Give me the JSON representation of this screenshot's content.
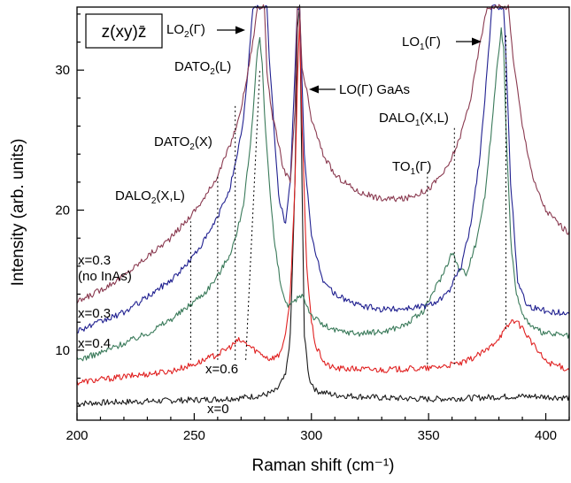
{
  "chart_data": {
    "type": "line",
    "title": "",
    "geometry_label": "z(xy)z̄",
    "xlabel": "Raman shift (cm⁻¹)",
    "ylabel": "Intensity (arb. units)",
    "xlim": [
      200,
      410
    ],
    "ylim": [
      5,
      34.5
    ],
    "x_ticks": [
      200,
      250,
      300,
      350,
      400
    ],
    "y_ticks": [
      10,
      20,
      30
    ],
    "grid": false,
    "series": [
      {
        "name": "x=0",
        "label_lines": [
          "x=0"
        ],
        "color": "#1a1a1a",
        "points": [
          [
            200,
            6.2
          ],
          [
            220,
            6.3
          ],
          [
            240,
            6.4
          ],
          [
            260,
            6.5
          ],
          [
            270,
            6.6
          ],
          [
            280,
            6.8
          ],
          [
            285,
            7.1
          ],
          [
            289,
            8.2
          ],
          [
            291,
            11
          ],
          [
            293,
            22
          ],
          [
            294,
            33
          ],
          [
            295,
            34.5
          ],
          [
            296,
            22
          ],
          [
            297,
            11
          ],
          [
            299,
            8
          ],
          [
            302,
            7.1
          ],
          [
            310,
            6.8
          ],
          [
            330,
            6.6
          ],
          [
            350,
            6.5
          ],
          [
            370,
            6.6
          ],
          [
            385,
            6.7
          ],
          [
            395,
            6.7
          ],
          [
            410,
            6.6
          ]
        ]
      },
      {
        "name": "x=0.6",
        "label_lines": [
          "x=0.6"
        ],
        "color": "#e02020",
        "points": [
          [
            200,
            7.7
          ],
          [
            220,
            8.1
          ],
          [
            240,
            8.5
          ],
          [
            250,
            9.0
          ],
          [
            260,
            9.7
          ],
          [
            265,
            10.2
          ],
          [
            269,
            10.7
          ],
          [
            272,
            10.5
          ],
          [
            276,
            10.0
          ],
          [
            282,
            9.4
          ],
          [
            286,
            9.6
          ],
          [
            289,
            11
          ],
          [
            291,
            14
          ],
          [
            293,
            22
          ],
          [
            294,
            29
          ],
          [
            295,
            33.5
          ],
          [
            296,
            26
          ],
          [
            298,
            16
          ],
          [
            300,
            12
          ],
          [
            302,
            10.2
          ],
          [
            306,
            9.0
          ],
          [
            310,
            8.7
          ],
          [
            330,
            8.6
          ],
          [
            350,
            8.7
          ],
          [
            365,
            9.1
          ],
          [
            375,
            10.0
          ],
          [
            382,
            11.3
          ],
          [
            386,
            12.2
          ],
          [
            390,
            11.6
          ],
          [
            395,
            10.3
          ],
          [
            400,
            9.2
          ],
          [
            410,
            8.6
          ]
        ]
      },
      {
        "name": "x=0.4",
        "label_lines": [
          "x=0.4"
        ],
        "color": "#3a7a5a",
        "points": [
          [
            200,
            9.3
          ],
          [
            210,
            9.8
          ],
          [
            220,
            10.5
          ],
          [
            230,
            11.2
          ],
          [
            240,
            12.2
          ],
          [
            245,
            12.8
          ],
          [
            250,
            13.5
          ],
          [
            255,
            14.2
          ],
          [
            260,
            15.3
          ],
          [
            265,
            16.8
          ],
          [
            268,
            18.2
          ],
          [
            271,
            20.5
          ],
          [
            274,
            24.5
          ],
          [
            276,
            29
          ],
          [
            277,
            31.5
          ],
          [
            278,
            32.2
          ],
          [
            279,
            30.5
          ],
          [
            280,
            27
          ],
          [
            282,
            22
          ],
          [
            284,
            18
          ],
          [
            287,
            14.5
          ],
          [
            290,
            13
          ],
          [
            293,
            13.5
          ],
          [
            296,
            14
          ],
          [
            300,
            12.5
          ],
          [
            305,
            11.8
          ],
          [
            310,
            11.4
          ],
          [
            320,
            11.2
          ],
          [
            330,
            11.3
          ],
          [
            340,
            11.8
          ],
          [
            348,
            12.8
          ],
          [
            352,
            14.2
          ],
          [
            356,
            15.4
          ],
          [
            360,
            17.0
          ],
          [
            363,
            15.8
          ],
          [
            366,
            15.5
          ],
          [
            370,
            17.5
          ],
          [
            374,
            21
          ],
          [
            377,
            26
          ],
          [
            379,
            30
          ],
          [
            381,
            33
          ],
          [
            382,
            31.5
          ],
          [
            383,
            26
          ],
          [
            385,
            18
          ],
          [
            387,
            14.5
          ],
          [
            390,
            12.5
          ],
          [
            395,
            11.5
          ],
          [
            400,
            11.2
          ],
          [
            410,
            11.0
          ]
        ]
      },
      {
        "name": "x=0.3",
        "label_lines": [
          "x=0.3"
        ],
        "color": "#202090",
        "points": [
          [
            200,
            11.4
          ],
          [
            210,
            12.0
          ],
          [
            220,
            12.7
          ],
          [
            230,
            13.8
          ],
          [
            240,
            15.0
          ],
          [
            245,
            15.8
          ],
          [
            250,
            16.8
          ],
          [
            255,
            18.0
          ],
          [
            260,
            19.5
          ],
          [
            265,
            21.5
          ],
          [
            268,
            23.5
          ],
          [
            271,
            26.5
          ],
          [
            273,
            30
          ],
          [
            275,
            34.5
          ],
          [
            281,
            34.5
          ],
          [
            282,
            31
          ],
          [
            284,
            26
          ],
          [
            286,
            21
          ],
          [
            289,
            19
          ],
          [
            291,
            22
          ],
          [
            293,
            30
          ],
          [
            294,
            34.5
          ],
          [
            295,
            34.5
          ],
          [
            297,
            24
          ],
          [
            300,
            18
          ],
          [
            305,
            15
          ],
          [
            310,
            14.0
          ],
          [
            320,
            13.2
          ],
          [
            330,
            12.9
          ],
          [
            340,
            13.0
          ],
          [
            350,
            13.2
          ],
          [
            358,
            14.0
          ],
          [
            364,
            16.0
          ],
          [
            368,
            19.0
          ],
          [
            372,
            24
          ],
          [
            375,
            30
          ],
          [
            377,
            34.5
          ],
          [
            382,
            34.5
          ],
          [
            383,
            31
          ],
          [
            385,
            22
          ],
          [
            388,
            15
          ],
          [
            392,
            13.2
          ],
          [
            400,
            12.8
          ],
          [
            410,
            12.6
          ]
        ]
      },
      {
        "name": "x=0.3 (no InAs)",
        "label_lines": [
          "x=0.3",
          "(no InAs)"
        ],
        "color": "#8a3a50",
        "points": [
          [
            200,
            13.4
          ],
          [
            210,
            14.3
          ],
          [
            220,
            15.3
          ],
          [
            230,
            16.7
          ],
          [
            240,
            18.0
          ],
          [
            248,
            19.5
          ],
          [
            255,
            21.0
          ],
          [
            260,
            22.5
          ],
          [
            265,
            24.5
          ],
          [
            269,
            26.5
          ],
          [
            272,
            29
          ],
          [
            275,
            32
          ],
          [
            277,
            34.5
          ],
          [
            280,
            34.5
          ],
          [
            281,
            30
          ],
          [
            283,
            27
          ],
          [
            285,
            25.5
          ],
          [
            288,
            23
          ],
          [
            291,
            22
          ],
          [
            293,
            27
          ],
          [
            294,
            34.5
          ],
          [
            295,
            34.5
          ],
          [
            296,
            30
          ],
          [
            298,
            28.5
          ],
          [
            300,
            26.5
          ],
          [
            305,
            24
          ],
          [
            310,
            22.5
          ],
          [
            320,
            21.3
          ],
          [
            330,
            20.8
          ],
          [
            340,
            20.8
          ],
          [
            350,
            21.5
          ],
          [
            358,
            23
          ],
          [
            363,
            25
          ],
          [
            368,
            28
          ],
          [
            372,
            32
          ],
          [
            375,
            34.5
          ],
          [
            384,
            34.5
          ],
          [
            386,
            31
          ],
          [
            390,
            26
          ],
          [
            395,
            22
          ],
          [
            400,
            20
          ],
          [
            410,
            18.3
          ]
        ]
      }
    ],
    "annotations": [
      {
        "id": "dalo2",
        "main": "DALO",
        "sub": "2",
        "tail": "(X,L)",
        "x": 248.5,
        "y_low": 9.3
      },
      {
        "id": "dato2x",
        "main": "DATO",
        "sub": "2",
        "tail": "(X)",
        "x": 260,
        "y_low": 9.3
      },
      {
        "id": "dato2l",
        "main": "DATO",
        "sub": "2",
        "tail": "(L)",
        "x": 267.5,
        "y_low": 9.3
      },
      {
        "id": "lo2",
        "main": "LO",
        "sub": "2",
        "tail": "(Γ)",
        "x": 272,
        "y_low": 9.3
      },
      {
        "id": "logaas",
        "main": "LO(Γ) GaAs",
        "sub": "",
        "tail": ""
      },
      {
        "id": "lo1",
        "main": "LO",
        "sub": "1",
        "tail": "(Γ)",
        "x": 383,
        "y_low": 11.5
      },
      {
        "id": "dalo1",
        "main": "DALO",
        "sub": "1",
        "tail": "(X,L)",
        "x": 361,
        "y_low": 9.0
      },
      {
        "id": "to1",
        "main": "TO",
        "sub": "1",
        "tail": "(Γ)",
        "x": 349.5,
        "y_low": 9.0
      }
    ]
  }
}
